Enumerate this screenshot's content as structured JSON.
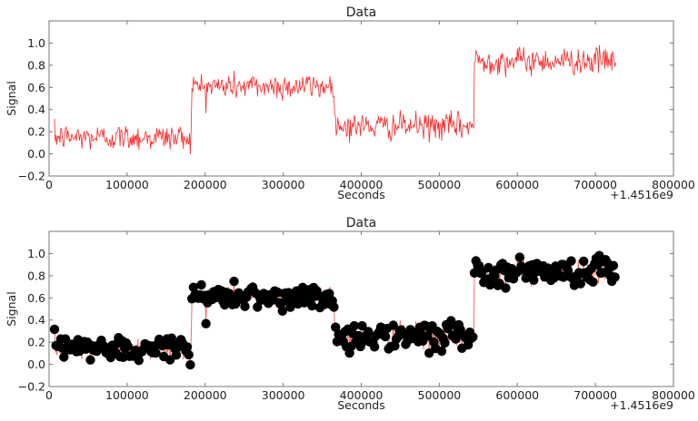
{
  "chart_data": [
    {
      "type": "line",
      "title": "Data",
      "xlabel": "Seconds",
      "ylabel": "Signal",
      "x_offset_label": "+1.4516e9",
      "xlim": [
        0,
        800000
      ],
      "ylim": [
        -0.2,
        1.2
      ],
      "xticks": [
        0,
        100000,
        200000,
        300000,
        400000,
        500000,
        600000,
        700000,
        800000
      ],
      "xtick_labels": [
        "0",
        "100000",
        "200000",
        "300000",
        "400000",
        "500000",
        "600000",
        "700000",
        "800000"
      ],
      "yticks": [
        -0.2,
        0.0,
        0.2,
        0.4,
        0.6,
        0.8,
        1.0
      ],
      "ytick_labels": [
        "−0.2",
        "0.0",
        "0.2",
        "0.4",
        "0.6",
        "0.8",
        "1.0"
      ],
      "grid": false,
      "legend": null,
      "line_color": "#ff0000",
      "markers": false,
      "segments": [
        {
          "x_start": 7000,
          "x_end": 183000,
          "mean": 0.15,
          "noise": 0.06
        },
        {
          "x_start": 183000,
          "x_end": 367000,
          "mean": 0.61,
          "noise": 0.06
        },
        {
          "x_start": 367000,
          "x_end": 545000,
          "mean": 0.25,
          "noise": 0.06
        },
        {
          "x_start": 545000,
          "x_end": 727000,
          "mean": 0.84,
          "noise": 0.06
        }
      ],
      "sample_step": 1000
    },
    {
      "type": "scatter",
      "title": "Data",
      "xlabel": "Seconds",
      "ylabel": "Signal",
      "x_offset_label": "+1.4516e9",
      "xlim": [
        0,
        800000
      ],
      "ylim": [
        -0.2,
        1.2
      ],
      "xticks": [
        0,
        100000,
        200000,
        300000,
        400000,
        500000,
        600000,
        700000,
        800000
      ],
      "xtick_labels": [
        "0",
        "100000",
        "200000",
        "300000",
        "400000",
        "500000",
        "600000",
        "700000",
        "800000"
      ],
      "yticks": [
        -0.2,
        0.0,
        0.2,
        0.4,
        0.6,
        0.8,
        1.0
      ],
      "ytick_labels": [
        "−0.2",
        "0.0",
        "0.2",
        "0.4",
        "0.6",
        "0.8",
        "1.0"
      ],
      "grid": false,
      "legend": null,
      "line_color": "#ff0000",
      "marker_color": "#000000",
      "markers": true,
      "segments": [
        {
          "x_start": 7000,
          "x_end": 183000,
          "mean": 0.15,
          "noise": 0.06
        },
        {
          "x_start": 183000,
          "x_end": 367000,
          "mean": 0.61,
          "noise": 0.06
        },
        {
          "x_start": 367000,
          "x_end": 545000,
          "mean": 0.25,
          "noise": 0.06
        },
        {
          "x_start": 545000,
          "x_end": 727000,
          "mean": 0.84,
          "noise": 0.06
        }
      ],
      "sample_step": 1000
    }
  ]
}
